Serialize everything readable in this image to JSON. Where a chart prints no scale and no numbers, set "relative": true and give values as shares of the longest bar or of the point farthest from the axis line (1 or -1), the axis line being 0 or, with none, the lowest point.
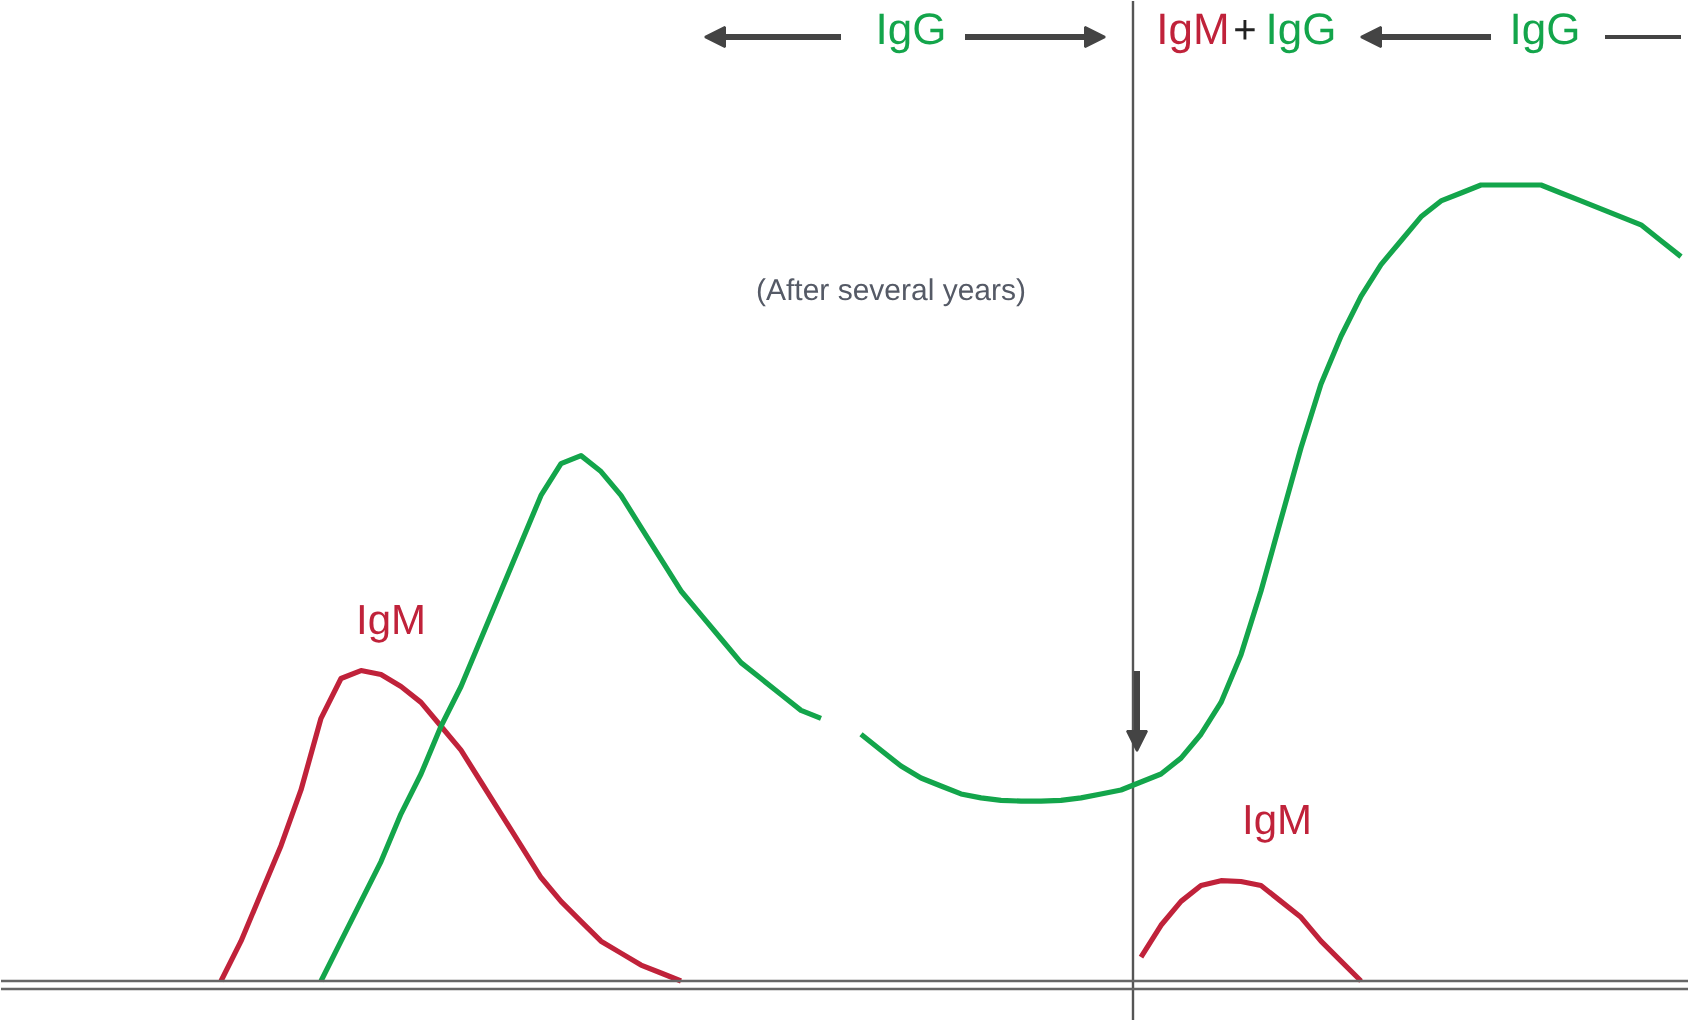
{
  "chart_data": {
    "type": "line",
    "relative": true,
    "grid": false,
    "marker": "none",
    "line_style": "solid",
    "categories": [
      null,
      null,
      null,
      null,
      null,
      null,
      null,
      null,
      null,
      null,
      null,
      null,
      null,
      null,
      null,
      null,
      null,
      null,
      null,
      null,
      null,
      null,
      null,
      null,
      null,
      null,
      null,
      null,
      null,
      null,
      null,
      null,
      null,
      null,
      null,
      null,
      null,
      null,
      null,
      null,
      null,
      null,
      null,
      null,
      null,
      null,
      null,
      null,
      null,
      null,
      null,
      null,
      null,
      null,
      null,
      null,
      null,
      null,
      null,
      null,
      null,
      null,
      null,
      null,
      null,
      null,
      null,
      null,
      null,
      null,
      null,
      null,
      null,
      null
    ],
    "series": [
      {
        "color": "#c0223a",
        "values": [
          0,
          0.05,
          0.11,
          0.17,
          0.24,
          0.33,
          0.38,
          0.39,
          0.385,
          0.37,
          0.35,
          0.32,
          0.29,
          0.25,
          0.21,
          0.17,
          0.13,
          0.1,
          0.075,
          0.05,
          0.035,
          0.02,
          0.01,
          0,
          null,
          null,
          null,
          null,
          null,
          null,
          null,
          null,
          null,
          null,
          null,
          null,
          null,
          null,
          null,
          null,
          null,
          null,
          null,
          null,
          null,
          null,
          null,
          null,
          null,
          null,
          null,
          null,
          null,
          null,
          null,
          null,
          null,
          null,
          null,
          null,
          null,
          null,
          null,
          null,
          null,
          null,
          null,
          null,
          null,
          null,
          null,
          null,
          null,
          null
        ]
      },
      {
        "color": "#c0223a",
        "values": [
          null,
          null,
          null,
          null,
          null,
          null,
          null,
          null,
          null,
          null,
          null,
          null,
          null,
          null,
          null,
          null,
          null,
          null,
          null,
          null,
          null,
          null,
          null,
          null,
          null,
          null,
          null,
          null,
          null,
          null,
          null,
          null,
          null,
          null,
          null,
          null,
          null,
          null,
          null,
          null,
          null,
          null,
          null,
          null,
          null,
          null,
          0.03,
          0.07,
          0.1,
          0.12,
          0.126,
          0.125,
          0.12,
          0.1,
          0.08,
          0.05,
          0.025,
          0,
          null,
          null,
          null,
          null,
          null,
          null,
          null,
          null,
          null,
          null,
          null,
          null,
          null,
          null,
          null,
          null
        ]
      },
      {
        "color": "#13a54b",
        "values": [
          null,
          null,
          null,
          null,
          null,
          0,
          0.05,
          0.1,
          0.15,
          0.21,
          0.26,
          0.32,
          0.37,
          0.43,
          0.49,
          0.55,
          0.61,
          0.65,
          0.66,
          0.64,
          0.61,
          0.57,
          0.53,
          0.49,
          0.46,
          0.43,
          0.4,
          0.38,
          0.36,
          0.34,
          0.33,
          null,
          null,
          null,
          null,
          null,
          null,
          null,
          null,
          null,
          null,
          null,
          null,
          null,
          null,
          null,
          null,
          null,
          null,
          null,
          null,
          null,
          null,
          null,
          null,
          null,
          null,
          null,
          null,
          null,
          null,
          null,
          null,
          null,
          null,
          null,
          null,
          null,
          null,
          null,
          null,
          null,
          null,
          null
        ]
      },
      {
        "color": "#13a54b",
        "values": [
          null,
          null,
          null,
          null,
          null,
          null,
          null,
          null,
          null,
          null,
          null,
          null,
          null,
          null,
          null,
          null,
          null,
          null,
          null,
          null,
          null,
          null,
          null,
          null,
          null,
          null,
          null,
          null,
          null,
          null,
          null,
          null,
          0.31,
          0.29,
          0.27,
          0.255,
          0.245,
          0.235,
          0.23,
          0.227,
          0.226,
          0.226,
          0.227,
          0.23,
          0.235,
          0.24,
          0.25,
          0.26,
          0.28,
          0.31,
          0.35,
          0.41,
          0.49,
          0.58,
          0.67,
          0.75,
          0.81,
          0.86,
          0.9,
          0.93,
          0.96,
          0.98,
          0.99,
          1.0,
          1.0,
          1.0,
          1.0,
          0.99,
          0.98,
          0.97,
          0.96,
          0.95,
          0.93,
          0.91
        ]
      }
    ],
    "annotations": [
      "IgG",
      "IgM",
      "+",
      "IgG",
      "IgG",
      "(After several years)",
      "IgM",
      "IgM"
    ]
  }
}
